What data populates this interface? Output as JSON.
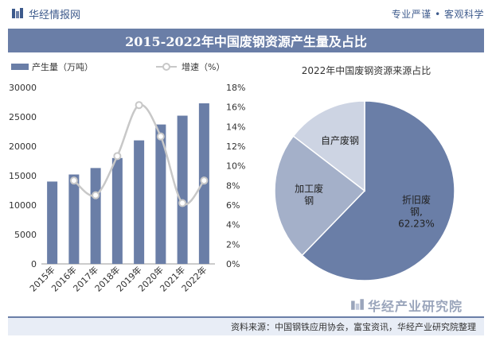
{
  "header": {
    "brand": "华经情报网",
    "slogan": "专业严谨 • 客观科学"
  },
  "title": "2015-2022年中国废钢资源产生量及占比",
  "footer": {
    "source": "资料来源：中国钢铁应用协会，富宝资讯，华经产业研究院整理",
    "brand": "华经产业研究院"
  },
  "colors": {
    "bar": "#6a7ea7",
    "line": "#c8c8c8",
    "pie1": "#6a7ea7",
    "pie2": "#a4b0c9",
    "pie3": "#cdd4e3"
  },
  "chart_data": [
    {
      "type": "bar",
      "legend": {
        "bar_label": "产生量（万吨）",
        "line_label": "增速（%）"
      },
      "categories": [
        "2015年",
        "2016年",
        "2017年",
        "2018年",
        "2019年",
        "2020年",
        "2021年",
        "2022年"
      ],
      "series": [
        {
          "name": "产生量（万吨）",
          "type": "bar",
          "axis": "left",
          "values": [
            14000,
            15200,
            16300,
            18000,
            21000,
            23700,
            25200,
            27300
          ]
        },
        {
          "name": "增速（%）",
          "type": "line",
          "axis": "right",
          "values": [
            null,
            8.5,
            7.0,
            11.0,
            16.2,
            13.0,
            6.2,
            8.5
          ]
        }
      ],
      "left_axis": {
        "ylim": [
          0,
          30000
        ],
        "ticks": [
          "0",
          "5000",
          "10000",
          "15000",
          "20000",
          "25000",
          "30000"
        ]
      },
      "right_axis": {
        "ylim": [
          0,
          18
        ],
        "ticks": [
          "0%",
          "2%",
          "4%",
          "6%",
          "8%",
          "10%",
          "12%",
          "14%",
          "16%",
          "18%"
        ]
      }
    },
    {
      "type": "pie",
      "title": "2022年中国废钢资源来源占比",
      "slices": [
        {
          "label_lines": [
            "折旧废",
            "钢,",
            "62.23%"
          ],
          "value": 62.23
        },
        {
          "label_lines": [
            "加工废",
            "钢"
          ],
          "value": 23.2
        },
        {
          "label_lines": [
            "自产废钢"
          ],
          "value": 14.57
        }
      ]
    }
  ]
}
